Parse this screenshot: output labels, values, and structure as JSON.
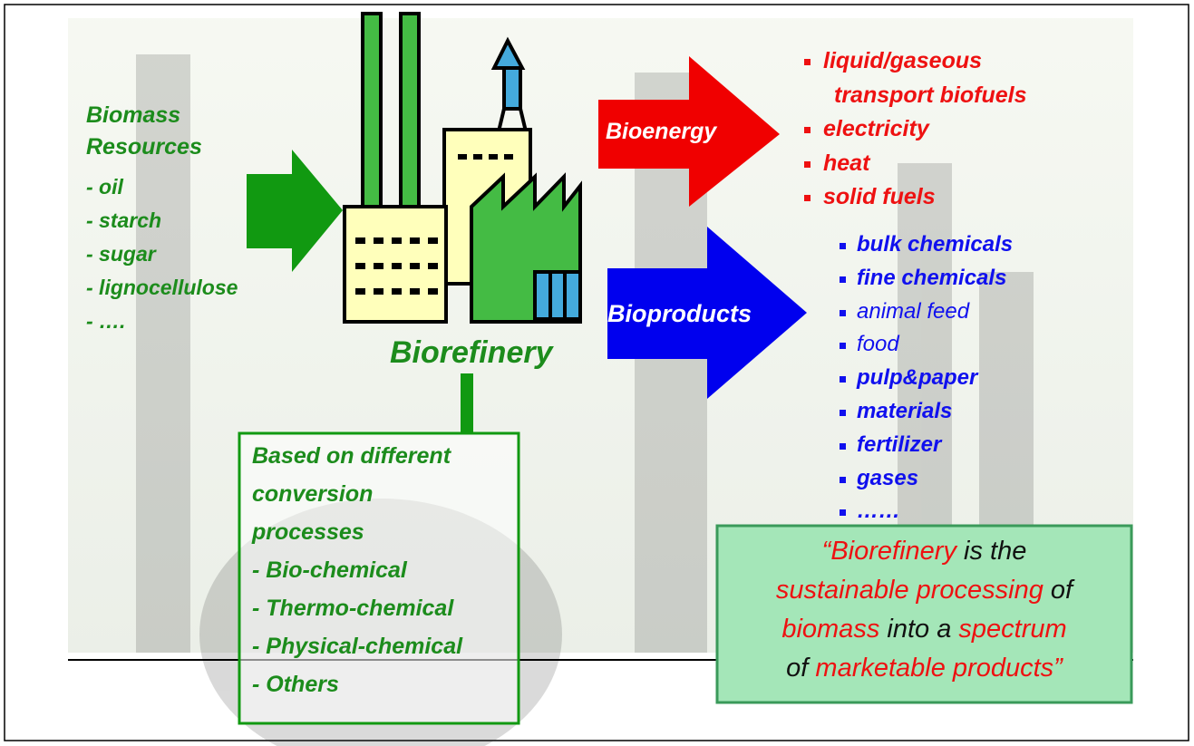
{
  "biomass": {
    "title": [
      "Biomass",
      "Resources"
    ],
    "items": [
      "- oil",
      "- starch",
      "- sugar",
      "- lignocellulose",
      "- …."
    ]
  },
  "factory": {
    "label": "Biorefinery"
  },
  "bioenergy": {
    "label": "Bioenergy",
    "items": [
      [
        "liquid/gaseous",
        "transport biofuels"
      ],
      [
        "electricity"
      ],
      [
        "heat"
      ],
      [
        "solid fuels"
      ]
    ]
  },
  "bioproducts": {
    "label": "Bioproducts",
    "items": [
      {
        "text": "bulk chemicals",
        "bold": true
      },
      {
        "text": "fine chemicals",
        "bold": true
      },
      {
        "text": "animal feed",
        "bold": false
      },
      {
        "text": "food",
        "bold": false
      },
      {
        "text": "pulp&paper",
        "bold": true
      },
      {
        "text": "materials",
        "bold": true
      },
      {
        "text": "fertilizer",
        "bold": true
      },
      {
        "text": "gases",
        "bold": true
      },
      {
        "text": "……",
        "bold": true
      }
    ]
  },
  "conversion": {
    "lines": [
      "Based on different",
      "conversion",
      "processes",
      "- Bio-chemical",
      "- Thermo-chemical",
      "- Physical-chemical",
      "- Others"
    ]
  },
  "quote": {
    "lines": [
      [
        {
          "text": "“Biorefinery",
          "emphasis": true
        },
        {
          "text": " is the",
          "emphasis": false
        }
      ],
      [
        {
          "text": "sustainable processing",
          "emphasis": true
        },
        {
          "text": " of",
          "emphasis": false
        }
      ],
      [
        {
          "text": "biomass",
          "emphasis": true
        },
        {
          "text": " into a ",
          "emphasis": false
        },
        {
          "text": "spectrum",
          "emphasis": true
        }
      ],
      [
        {
          "text": "of ",
          "emphasis": false
        },
        {
          "text": "marketable products”",
          "emphasis": true
        }
      ]
    ]
  }
}
